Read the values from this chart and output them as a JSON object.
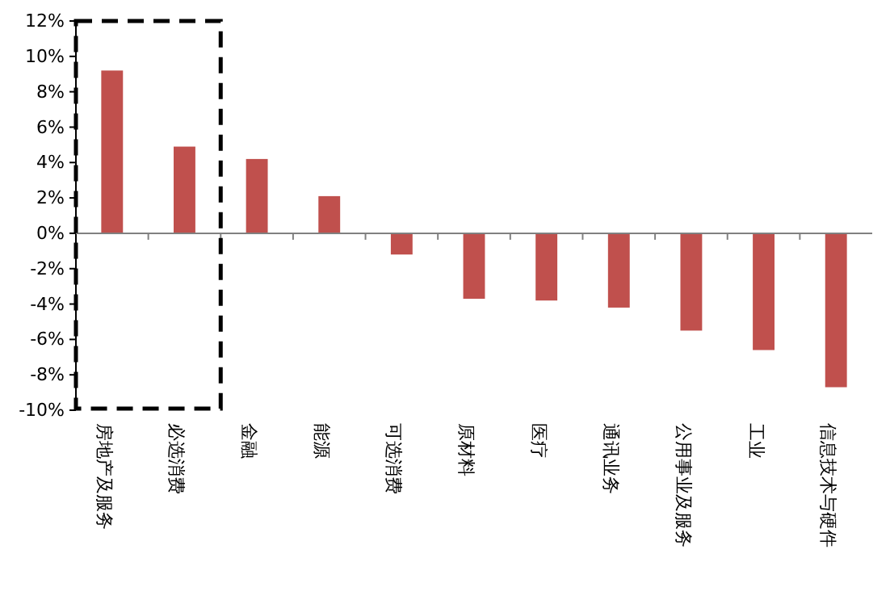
{
  "chart_data": {
    "type": "bar",
    "categories": [
      "房地产及服务",
      "必选消费",
      "金融",
      "能源",
      "可选消费",
      "原材料",
      "医疗",
      "通讯业务",
      "公用事业及服务",
      "工业",
      "信息技术与硬件"
    ],
    "values": [
      9.2,
      4.9,
      4.2,
      2.1,
      -1.2,
      -3.7,
      -3.8,
      -4.2,
      -5.5,
      -6.6,
      -8.7
    ],
    "color": "#c0504d",
    "ylim": [
      -10,
      12
    ],
    "yticks": [
      {
        "value": -10,
        "label": "-10%"
      },
      {
        "value": -8,
        "label": "-8%"
      },
      {
        "value": -6,
        "label": "-6%"
      },
      {
        "value": -4,
        "label": "-4%"
      },
      {
        "value": -2,
        "label": "-2%"
      },
      {
        "value": 0,
        "label": "0%"
      },
      {
        "value": 2,
        "label": "2%"
      },
      {
        "value": 4,
        "label": "4%"
      },
      {
        "value": 6,
        "label": "6%"
      },
      {
        "value": 8,
        "label": "8%"
      },
      {
        "value": 10,
        "label": "10%"
      },
      {
        "value": 12,
        "label": "12%"
      }
    ]
  }
}
